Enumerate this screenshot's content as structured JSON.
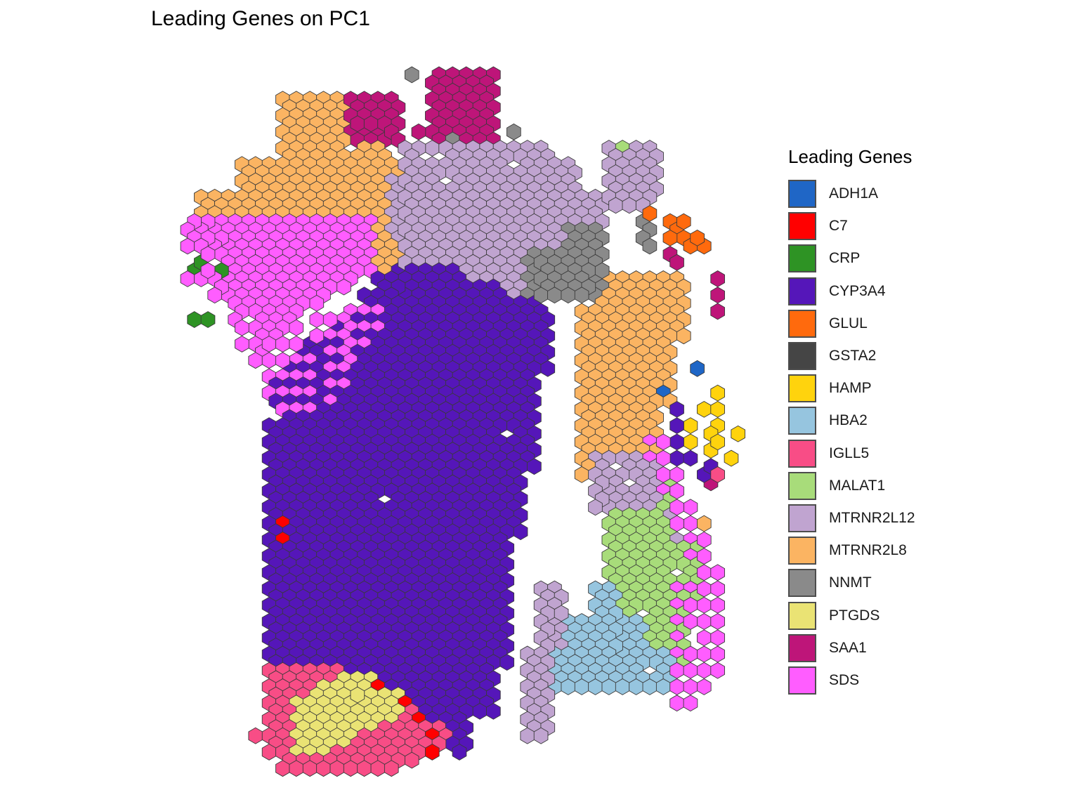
{
  "chart_data": {
    "type": "heatmap",
    "title": "Leading Genes on PC1",
    "legend_title": "Leading Genes",
    "legend_position": "right",
    "grid": false,
    "categories": [
      {
        "name": "ADH1A",
        "color": "#1F66C6"
      },
      {
        "name": "C7",
        "color": "#FF0000"
      },
      {
        "name": "CRP",
        "color": "#2E9324"
      },
      {
        "name": "CYP3A4",
        "color": "#5516B9"
      },
      {
        "name": "GLUL",
        "color": "#FF6A0D"
      },
      {
        "name": "GSTA2",
        "color": "#454545"
      },
      {
        "name": "HAMP",
        "color": "#FFD30D"
      },
      {
        "name": "HBA2",
        "color": "#96C5DF"
      },
      {
        "name": "IGLL5",
        "color": "#F84D86"
      },
      {
        "name": "MALAT1",
        "color": "#A8DC7A"
      },
      {
        "name": "MTRNR2L12",
        "color": "#C0A4D0"
      },
      {
        "name": "MTRNR2L8",
        "color": "#FBB462"
      },
      {
        "name": "NNMT",
        "color": "#8A8A8A"
      },
      {
        "name": "PTGDS",
        "color": "#EAE374"
      },
      {
        "name": "SAA1",
        "color": "#BE1579"
      },
      {
        "name": "SDS",
        "color": "#FF5DFF"
      }
    ],
    "spots": [
      [
        "CRP",
        0,
        13
      ],
      [
        "CRP",
        1,
        13
      ],
      [
        "CRP",
        0,
        7
      ],
      [
        "CRP",
        1,
        6
      ],
      [
        "CRP",
        2,
        7
      ],
      [
        "SDS",
        0,
        1
      ],
      [
        "SDS",
        1,
        1
      ],
      [
        "SDS",
        0,
        2
      ],
      [
        "SDS",
        1,
        2
      ],
      [
        "SDS",
        0,
        3
      ],
      [
        "SDS",
        1,
        3
      ],
      [
        "SDS",
        0,
        4
      ],
      [
        "SDS",
        1,
        4
      ],
      [
        "SDS",
        2,
        5
      ],
      [
        "SDS",
        1,
        5
      ],
      [
        "SDS",
        0,
        8
      ],
      [
        "SDS",
        1,
        8
      ],
      [
        "SDS",
        2,
        8
      ],
      [
        "SDS",
        1,
        7
      ],
      [
        "SDS",
        2,
        9
      ],
      [
        "SDS",
        3,
        9
      ],
      [
        "SDS",
        4,
        10
      ],
      [
        "SDS",
        5,
        10
      ],
      [
        "SDS",
        6,
        10
      ],
      [
        "SDS",
        7,
        10
      ],
      [
        "SDS",
        8,
        11
      ],
      [
        "SDS",
        9,
        11
      ],
      [
        "SDS",
        2,
        10
      ],
      [
        "SDS",
        3,
        11
      ],
      [
        "SDS",
        4,
        12
      ],
      [
        "SDS",
        5,
        12
      ],
      [
        "SDS",
        3,
        13
      ],
      [
        "SDS",
        4,
        14
      ],
      [
        "SDS",
        5,
        14
      ],
      [
        "SDS",
        6,
        14
      ],
      [
        "SDS",
        7,
        14
      ],
      [
        "SDS",
        8,
        14
      ],
      [
        "SDS",
        9,
        13
      ],
      [
        "SDS",
        10,
        13
      ],
      [
        "SDS",
        11,
        13
      ],
      [
        "SDS",
        12,
        12
      ],
      [
        "SDS",
        13,
        12
      ],
      [
        "SDS",
        14,
        12
      ],
      [
        "SDS",
        4,
        16
      ],
      [
        "SDS",
        5,
        16
      ],
      [
        "SDS",
        6,
        16
      ],
      [
        "SDS",
        7,
        16
      ],
      [
        "SDS",
        8,
        16
      ],
      [
        "SDS",
        9,
        15
      ],
      [
        "SDS",
        10,
        15
      ],
      [
        "SDS",
        11,
        15
      ],
      [
        "SDS",
        12,
        14
      ],
      [
        "SDS",
        13,
        14
      ],
      [
        "SDS",
        14,
        14
      ],
      [
        "SDS",
        5,
        18
      ],
      [
        "SDS",
        6,
        18
      ],
      [
        "SDS",
        7,
        18
      ],
      [
        "SDS",
        8,
        18
      ],
      [
        "SDS",
        9,
        18
      ],
      [
        "SDS",
        10,
        17
      ],
      [
        "SDS",
        11,
        17
      ],
      [
        "SDS",
        12,
        16
      ],
      [
        "SDS",
        13,
        16
      ],
      [
        "SDS",
        6,
        20
      ],
      [
        "SDS",
        7,
        20
      ],
      [
        "SDS",
        8,
        20
      ],
      [
        "SDS",
        9,
        20
      ],
      [
        "SDS",
        10,
        19
      ],
      [
        "SDS",
        11,
        19
      ],
      [
        "SDS",
        12,
        18
      ],
      [
        "SDS",
        6,
        22
      ],
      [
        "SDS",
        7,
        22
      ],
      [
        "SDS",
        8,
        22
      ],
      [
        "SDS",
        9,
        22
      ],
      [
        "SDS",
        10,
        21
      ],
      [
        "SDS",
        11,
        21
      ],
      [
        "SDS",
        7,
        24
      ],
      [
        "SDS",
        8,
        24
      ],
      [
        "SDS",
        9,
        24
      ],
      [
        "SDS",
        10,
        23
      ],
      [
        "SDS",
        34,
        28
      ],
      [
        "SDS",
        35,
        28
      ],
      [
        "SDS",
        34,
        30
      ],
      [
        "SDS",
        35,
        30
      ],
      [
        "SDS",
        35,
        32
      ],
      [
        "SDS",
        36,
        32
      ],
      [
        "SDS",
        35,
        34
      ],
      [
        "SDS",
        36,
        34
      ],
      [
        "SDS",
        36,
        36
      ],
      [
        "SDS",
        37,
        36
      ],
      [
        "SDS",
        36,
        38
      ],
      [
        "SDS",
        37,
        38
      ],
      [
        "SDS",
        37,
        40
      ],
      [
        "SDS",
        38,
        40
      ],
      [
        "SDS",
        37,
        42
      ],
      [
        "SDS",
        38,
        42
      ],
      [
        "SDS",
        38,
        44
      ],
      [
        "SDS",
        39,
        44
      ],
      [
        "SDS",
        36,
        46
      ],
      [
        "SDS",
        37,
        46
      ],
      [
        "SDS",
        38,
        46
      ],
      [
        "SDS",
        39,
        46
      ],
      [
        "SDS",
        36,
        48
      ],
      [
        "SDS",
        37,
        48
      ],
      [
        "SDS",
        38,
        48
      ],
      [
        "SDS",
        39,
        48
      ],
      [
        "SDS",
        36,
        50
      ],
      [
        "SDS",
        37,
        50
      ],
      [
        "SDS",
        38,
        50
      ],
      [
        "SDS",
        39,
        50
      ],
      [
        "SDS",
        36,
        52
      ],
      [
        "SDS",
        37,
        52
      ],
      [
        "SDS",
        38,
        52
      ],
      [
        "SDS",
        39,
        52
      ],
      [
        "SDS",
        36,
        54
      ],
      [
        "SDS",
        37,
        54
      ],
      [
        "SDS",
        38,
        54
      ],
      [
        "SDS",
        39,
        54
      ],
      [
        "SDS",
        36,
        56
      ],
      [
        "SDS",
        37,
        56
      ],
      [
        "SDS",
        38,
        56
      ],
      [
        "SDS",
        39,
        56
      ],
      [
        "SDS",
        36,
        58
      ],
      [
        "SDS",
        37,
        58
      ],
      [
        "SDS",
        38,
        58
      ],
      [
        "SDS",
        36,
        60
      ],
      [
        "SDS",
        37,
        60
      ],
      [
        "C7",
        7,
        38
      ],
      [
        "C7",
        7,
        40
      ],
      [
        "C7",
        14,
        58
      ],
      [
        "C7",
        16,
        60
      ],
      [
        "C7",
        17,
        62
      ],
      [
        "C7",
        18,
        64
      ],
      [
        "C7",
        18,
        66
      ],
      [
        "C7",
        19,
        70
      ],
      [
        "C7",
        20,
        74
      ]
    ]
  }
}
